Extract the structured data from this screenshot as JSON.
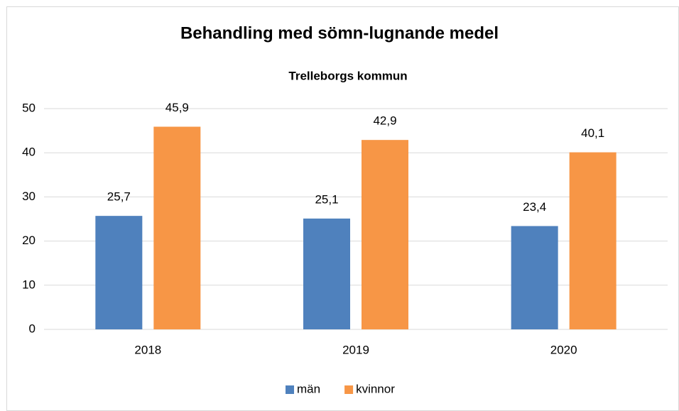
{
  "chart_data": {
    "type": "bar",
    "title": "Behandling med sömn-lugnande medel",
    "subtitle": "Trelleborgs kommun",
    "categories": [
      "2018",
      "2019",
      "2020"
    ],
    "series": [
      {
        "name": "män",
        "color": "#4f81bd",
        "values": [
          25.7,
          25.1,
          23.4
        ],
        "value_labels": [
          "25,7",
          "25,1",
          "23,4"
        ]
      },
      {
        "name": "kvinnor",
        "color": "#f79646",
        "values": [
          45.9,
          42.9,
          40.1
        ],
        "value_labels": [
          "45,9",
          "42,9",
          "40,1"
        ]
      }
    ],
    "ylim": [
      0,
      50
    ],
    "yticks": [
      0,
      10,
      20,
      30,
      40,
      50
    ],
    "grid": true,
    "legend": "bottom"
  }
}
